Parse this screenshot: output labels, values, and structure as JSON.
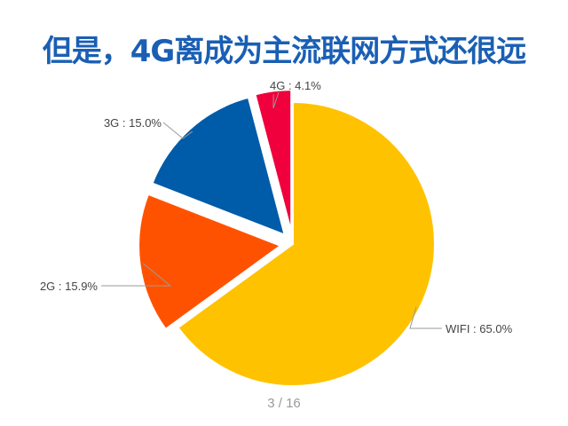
{
  "slide": {
    "title": "但是，4G离成为主流联网方式还很远",
    "page_indicator": "3 / 16"
  },
  "chart_data": {
    "type": "pie",
    "title": "但是，4G离成为主流联网方式还很远",
    "slices": [
      {
        "name": "WIFI",
        "value": 65.0,
        "label": "WIFI : 65.0%",
        "color": "#FFC200",
        "exploded": false
      },
      {
        "name": "2G",
        "value": 15.9,
        "label": "2G : 15.9%",
        "color": "#FF5200",
        "exploded": true
      },
      {
        "name": "3G",
        "value": 15.0,
        "label": "3G : 15.0%",
        "color": "#005BA8",
        "exploded": true
      },
      {
        "name": "4G",
        "value": 4.1,
        "label": "4G : 4.1%",
        "color": "#F0003C",
        "exploded": true
      }
    ],
    "start_angle": "12 o'clock",
    "direction": "clockwise",
    "legend": "none"
  }
}
